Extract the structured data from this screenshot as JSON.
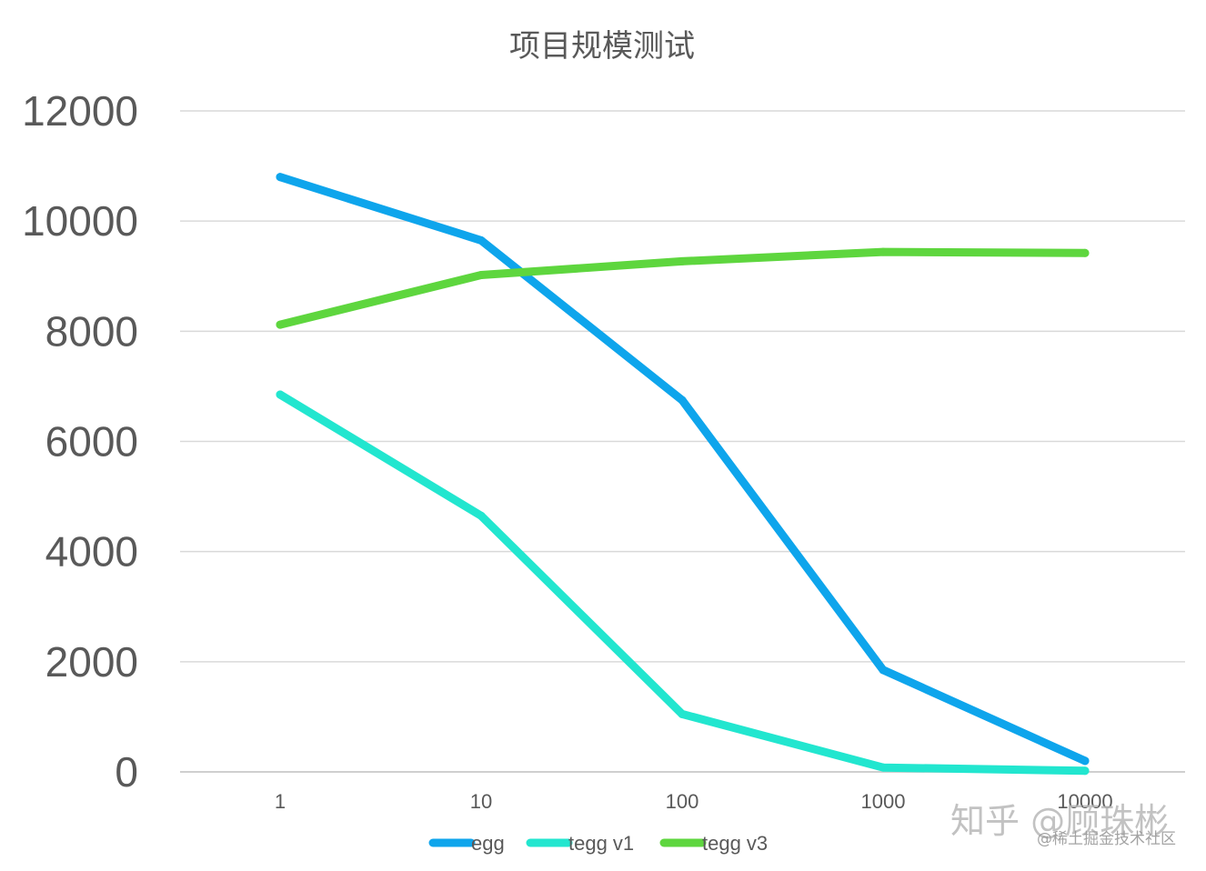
{
  "chart_data": {
    "type": "line",
    "title": "项目规模测试",
    "categories": [
      "1",
      "10",
      "100",
      "1000",
      "10000"
    ],
    "ylim": [
      0,
      12000
    ],
    "yticks": [
      "0",
      "2000",
      "4000",
      "6000",
      "8000",
      "10000",
      "12000"
    ],
    "grid": true,
    "legend_position": "bottom",
    "series": [
      {
        "name": "egg",
        "color": "#0ea5ec",
        "values": [
          10800,
          9650,
          6750,
          1850,
          200
        ]
      },
      {
        "name": "tegg v1",
        "color": "#22e6cf",
        "values": [
          6850,
          4650,
          1050,
          80,
          20
        ]
      },
      {
        "name": "tegg v3",
        "color": "#5ed63e",
        "values": [
          8120,
          9020,
          9270,
          9440,
          9420
        ]
      }
    ]
  },
  "watermark": {
    "main": "知乎 @顾珠彬",
    "sub": "@稀土掘金技术社区"
  }
}
